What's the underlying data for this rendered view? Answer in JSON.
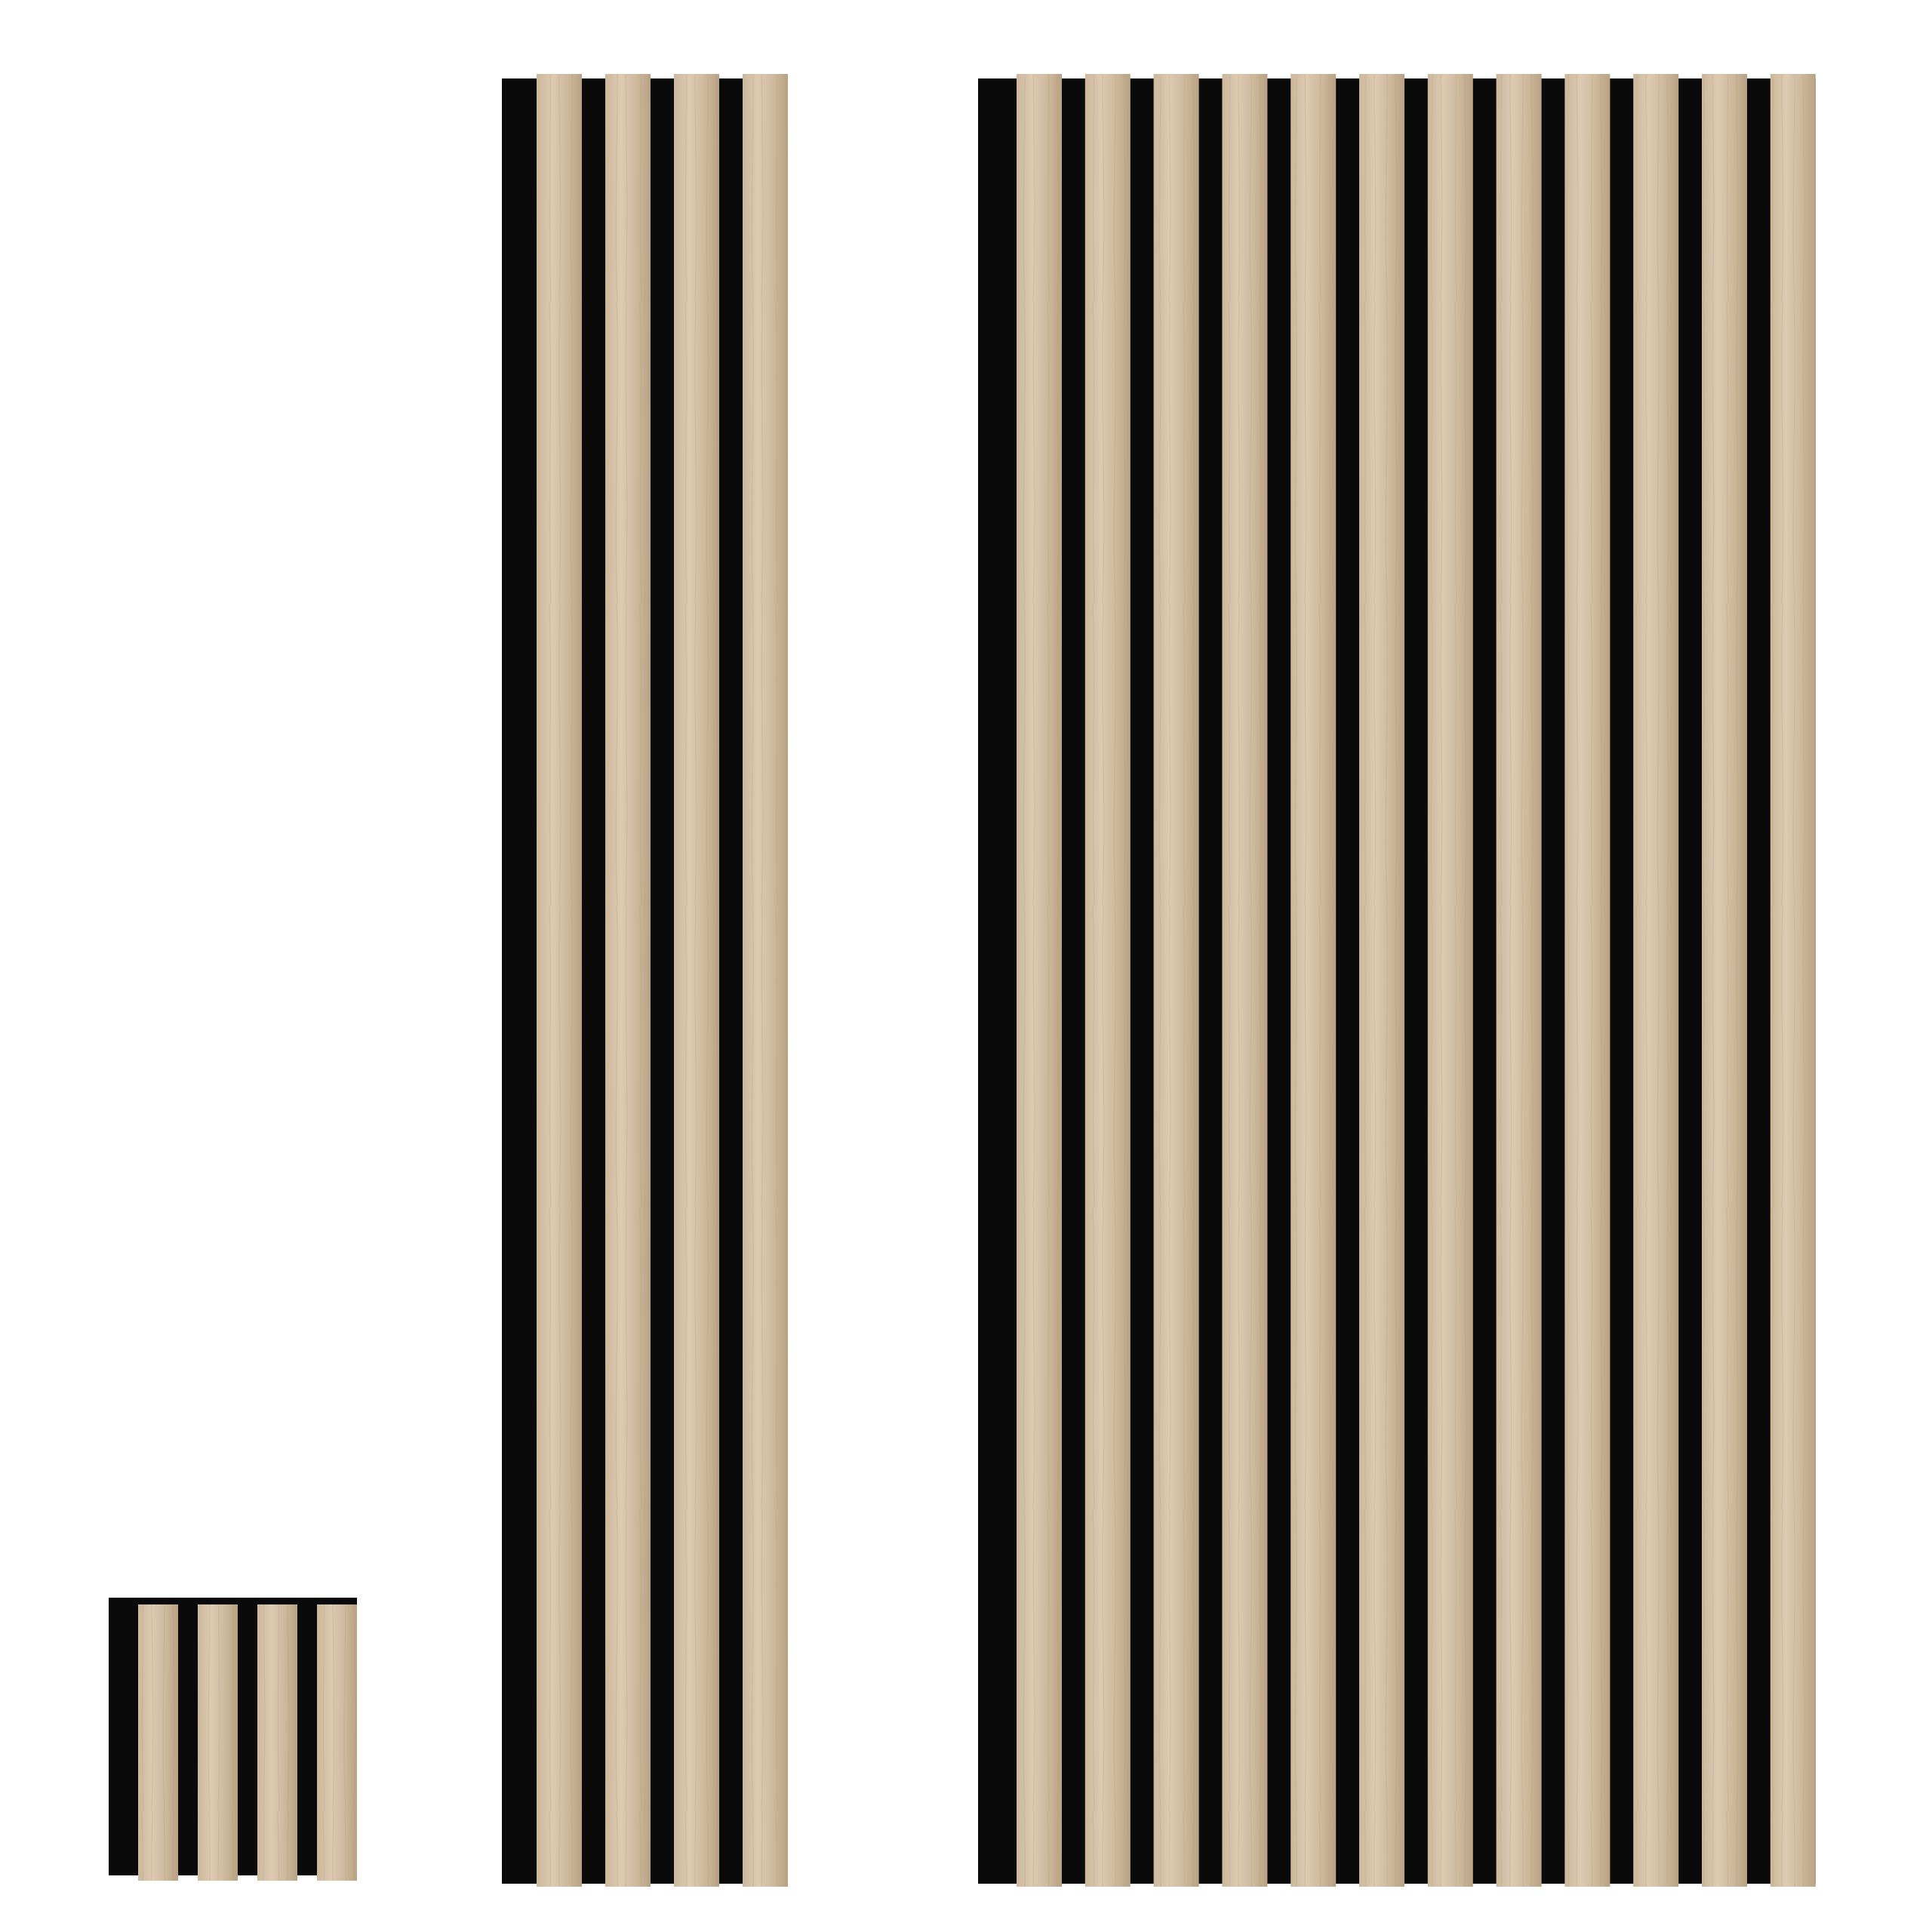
{
  "image": {
    "subject": "acoustic-wood-slat-panels",
    "background_color": "#ffffff",
    "colors": {
      "felt_backing": "#0a0a0a",
      "wood_light": "#dccab2",
      "wood_mid": "#cdb89c",
      "wood_dark": "#b9a283"
    },
    "panels": [
      {
        "name": "sample-panel",
        "slat_count": 4
      },
      {
        "name": "narrow-panel",
        "slat_count": 4
      },
      {
        "name": "wide-panel",
        "slat_count": 12
      }
    ]
  }
}
